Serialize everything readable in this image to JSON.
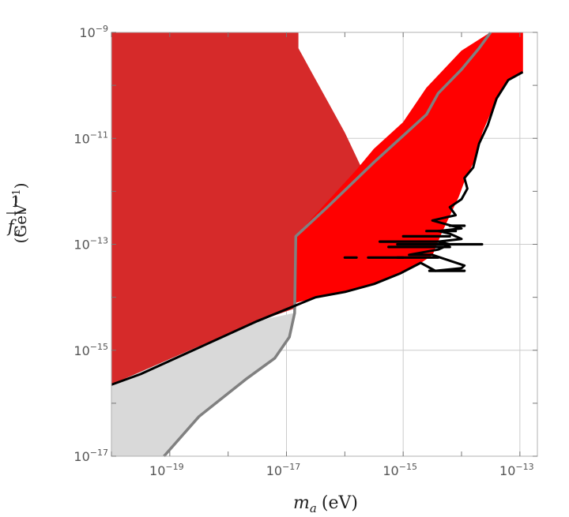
{
  "chart_data": {
    "type": "area",
    "title": "",
    "xlabel": {
      "main": "m",
      "sub": "a",
      "unit": "(eV)"
    },
    "ylabel": {
      "numerator": "1",
      "denominator_main": "f",
      "denominator_sub": "a",
      "unit": "(GeV",
      "unit_exp": "−1",
      "unit_close": ")"
    },
    "x_scale": "log10",
    "y_scale": "log10",
    "xlim_log10": [
      -20,
      -12.7
    ],
    "ylim_log10": [
      -17,
      -9
    ],
    "grid": true,
    "x_ticks": [
      {
        "base": "10",
        "exp": "−19",
        "log10": -19
      },
      {
        "base": "10",
        "exp": "−17",
        "log10": -17
      },
      {
        "base": "10",
        "exp": "−15",
        "log10": -15
      },
      {
        "base": "10",
        "exp": "−13",
        "log10": -13
      }
    ],
    "y_ticks": [
      {
        "base": "10",
        "exp": "−17",
        "log10": -17
      },
      {
        "base": "10",
        "exp": "−15",
        "log10": -15
      },
      {
        "base": "10",
        "exp": "−13",
        "log10": -13
      },
      {
        "base": "10",
        "exp": "−11",
        "log10": -11
      },
      {
        "base": "10",
        "exp": "−9",
        "log10": -9
      }
    ],
    "colors": {
      "dark_red_region": "#d62a2a",
      "bright_red_region": "#ff0000",
      "grey_region": "#d9d9d9",
      "grey_curve": "#808080",
      "boundary": "#000000",
      "grid": "#cccccc",
      "frame": "#b0b0b0"
    },
    "series": [
      {
        "region": "dark_red",
        "points_log10": [
          [
            -20,
            -9
          ],
          [
            -16.8,
            -9
          ],
          [
            -16.8,
            -9.3
          ],
          [
            -16.6,
            -9.7
          ],
          [
            -16.3,
            -10.3
          ],
          [
            -16.0,
            -10.9
          ],
          [
            -15.7,
            -11.6
          ],
          [
            -15.4,
            -12.3
          ],
          [
            -15.05,
            -12.85
          ],
          [
            -16.84,
            -12.85
          ],
          [
            -16.84,
            -14.2
          ],
          [
            -17.5,
            -14.45
          ],
          [
            -18.5,
            -14.95
          ],
          [
            -19.5,
            -15.45
          ],
          [
            -20,
            -15.65
          ]
        ]
      },
      {
        "region": "bright_red",
        "points_log10": [
          [
            -15.8,
            -11.6
          ],
          [
            -15.5,
            -11.2
          ],
          [
            -15.0,
            -10.7
          ],
          [
            -14.6,
            -10.05
          ],
          [
            -14.0,
            -9.35
          ],
          [
            -13.5,
            -9
          ],
          [
            -12.95,
            -9
          ],
          [
            -12.95,
            -9.75
          ],
          [
            -13.2,
            -9.9
          ],
          [
            -13.4,
            -10.25
          ],
          [
            -13.65,
            -10.9
          ],
          [
            -13.75,
            -11.35
          ],
          [
            -13.95,
            -11.8
          ],
          [
            -14.05,
            -12.1
          ],
          [
            -14.2,
            -12.45
          ],
          [
            -14.35,
            -12.8
          ],
          [
            -14.5,
            -13.2
          ],
          [
            -14.7,
            -13.35
          ],
          [
            -15.05,
            -13.55
          ],
          [
            -15.5,
            -13.75
          ],
          [
            -16.0,
            -13.9
          ],
          [
            -16.5,
            -14.0
          ],
          [
            -16.84,
            -14.1
          ],
          [
            -16.84,
            -12.85
          ]
        ]
      },
      {
        "region": "grey",
        "points_log10": [
          [
            -20,
            -15.65
          ],
          [
            -17.5,
            -14.45
          ],
          [
            -16.86,
            -14.3
          ],
          [
            -16.95,
            -14.75
          ],
          [
            -17.2,
            -15.15
          ],
          [
            -17.7,
            -15.55
          ],
          [
            -18.5,
            -16.25
          ],
          [
            -19.1,
            -17
          ],
          [
            -20,
            -17
          ]
        ]
      },
      {
        "curve": "grey_boundary",
        "points_log10": [
          [
            -19.1,
            -17
          ],
          [
            -18.5,
            -16.25
          ],
          [
            -17.7,
            -15.55
          ],
          [
            -17.2,
            -15.15
          ],
          [
            -16.95,
            -14.75
          ],
          [
            -16.86,
            -14.3
          ],
          [
            -16.84,
            -12.85
          ],
          [
            -16.3,
            -12.3
          ],
          [
            -15.5,
            -11.45
          ],
          [
            -15.0,
            -10.95
          ],
          [
            -14.6,
            -10.55
          ],
          [
            -14.4,
            -10.15
          ],
          [
            -14.0,
            -9.7
          ],
          [
            -13.7,
            -9.3
          ],
          [
            -13.5,
            -9.0
          ]
        ]
      },
      {
        "curve": "black_boundary",
        "points_log10": [
          [
            -20,
            -15.65
          ],
          [
            -19.5,
            -15.45
          ],
          [
            -18.5,
            -14.95
          ],
          [
            -17.5,
            -14.45
          ],
          [
            -16.5,
            -14.0
          ],
          [
            -16.0,
            -13.9
          ],
          [
            -15.5,
            -13.75
          ],
          [
            -15.05,
            -13.55
          ],
          [
            -14.7,
            -13.35
          ],
          [
            -14.45,
            -13.5
          ],
          [
            -14.0,
            -13.45
          ],
          [
            -13.95,
            -13.4
          ],
          [
            -14.5,
            -13.2
          ],
          [
            -14.9,
            -13.2
          ],
          [
            -14.4,
            -13.1
          ],
          [
            -14.2,
            -13.0
          ],
          [
            -14.4,
            -12.95
          ],
          [
            -14.0,
            -12.9
          ],
          [
            -14.2,
            -12.8
          ],
          [
            -14.4,
            -12.75
          ],
          [
            -14.0,
            -12.7
          ],
          [
            -14.5,
            -12.55
          ],
          [
            -14.3,
            -12.5
          ],
          [
            -14.1,
            -12.45
          ],
          [
            -14.2,
            -12.3
          ],
          [
            -14.0,
            -12.15
          ],
          [
            -13.9,
            -11.95
          ],
          [
            -13.95,
            -11.75
          ],
          [
            -13.8,
            -11.55
          ],
          [
            -13.7,
            -11.1
          ],
          [
            -13.55,
            -10.75
          ],
          [
            -13.4,
            -10.25
          ],
          [
            -13.2,
            -9.9
          ],
          [
            -12.95,
            -9.75
          ]
        ]
      },
      {
        "curve": "black_spikes",
        "segments_log10": [
          [
            [
              -15.4,
              -12.95
            ],
            [
              -14.3,
              -12.95
            ]
          ],
          [
            [
              -15.25,
              -13.05
            ],
            [
              -14.2,
              -13.05
            ]
          ],
          [
            [
              -15.1,
              -13.25
            ],
            [
              -14.4,
              -13.25
            ]
          ],
          [
            [
              -15.0,
              -12.85
            ],
            [
              -14.2,
              -12.85
            ]
          ],
          [
            [
              -14.6,
              -12.75
            ],
            [
              -14.1,
              -12.75
            ]
          ],
          [
            [
              -14.2,
              -12.65
            ],
            [
              -13.95,
              -12.65
            ]
          ],
          [
            [
              -16.0,
              -13.25
            ],
            [
              -15.8,
              -13.25
            ]
          ],
          [
            [
              -15.1,
              -13.0
            ],
            [
              -13.65,
              -13.0
            ]
          ],
          [
            [
              -15.6,
              -13.25
            ],
            [
              -15.0,
              -13.25
            ]
          ],
          [
            [
              -14.55,
              -13.5
            ],
            [
              -13.95,
              -13.5
            ]
          ]
        ]
      }
    ]
  }
}
